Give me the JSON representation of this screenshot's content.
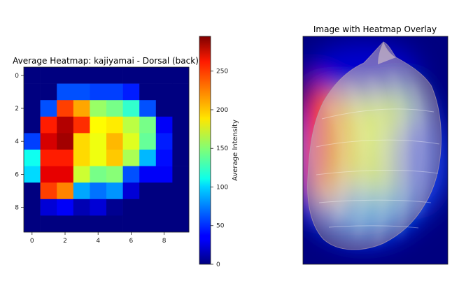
{
  "chart_data": [
    {
      "type": "heatmap",
      "title": "Average Heatmap: kajiyamai - Dorsal (back)",
      "x_ticks": [
        "0",
        "2",
        "4",
        "6",
        "8"
      ],
      "y_ticks": [
        "0",
        "2",
        "4",
        "6",
        "8"
      ],
      "rows": 10,
      "cols": 10,
      "values": [
        [
          0,
          0,
          0,
          0,
          0,
          0,
          0,
          0,
          0,
          0
        ],
        [
          0,
          0,
          60,
          60,
          55,
          55,
          45,
          0,
          0,
          0
        ],
        [
          0,
          60,
          240,
          210,
          155,
          145,
          125,
          60,
          0,
          0
        ],
        [
          0,
          250,
          280,
          245,
          185,
          190,
          165,
          145,
          35,
          0
        ],
        [
          55,
          270,
          285,
          195,
          180,
          205,
          175,
          140,
          45,
          0
        ],
        [
          115,
          250,
          250,
          195,
          180,
          200,
          160,
          90,
          40,
          0
        ],
        [
          100,
          265,
          265,
          170,
          145,
          150,
          60,
          35,
          35,
          0
        ],
        [
          0,
          240,
          220,
          85,
          70,
          80,
          25,
          0,
          0,
          0
        ],
        [
          0,
          25,
          35,
          15,
          25,
          5,
          0,
          0,
          0,
          0
        ],
        [
          0,
          0,
          0,
          0,
          0,
          0,
          0,
          0,
          0,
          0
        ]
      ],
      "colorbar": {
        "label": "Average Intensity",
        "ticks": [
          "0",
          "50",
          "100",
          "150",
          "200",
          "250"
        ],
        "min": 0,
        "max": 295
      },
      "colormap": "jet"
    },
    {
      "type": "image",
      "title": "Image with Heatmap Overlay"
    }
  ]
}
